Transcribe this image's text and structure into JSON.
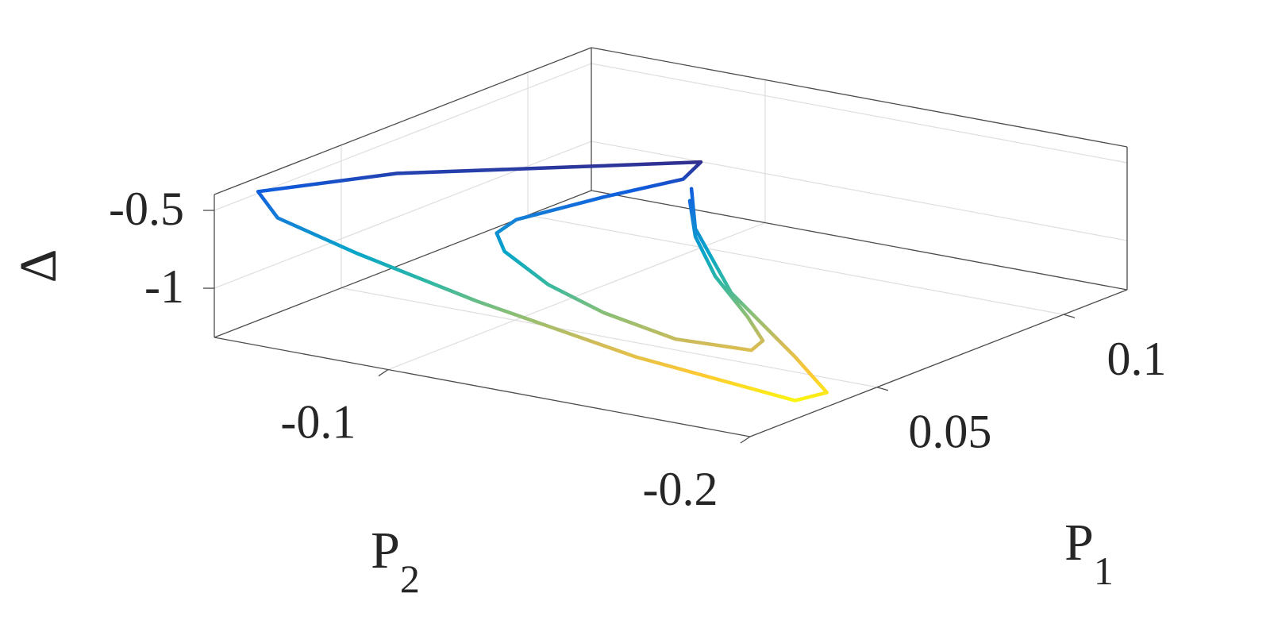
{
  "chart_data": {
    "type": "line3d",
    "xlabel": {
      "text": "P",
      "subscript": "1"
    },
    "ylabel": {
      "text": "P",
      "subscript": "2"
    },
    "zlabel": "Δ",
    "x": [
      0.0652,
      0.0635,
      0.0575,
      0.0488,
      0.0425,
      0.0407,
      0.0408,
      0.0418,
      0.0428,
      0.0437,
      0.0443,
      0.045,
      0.0559,
      0.0674,
      0.0769,
      0.0625,
      0.0454,
      0.0249,
      0.0252,
      0.03,
      0.0326,
      0.0349,
      0.0355,
      0.0384,
      0.0378,
      0.0476,
      0.0599,
      0.0673
    ],
    "y": [
      -0.1326,
      -0.1359,
      -0.1476,
      -0.1654,
      -0.1762,
      -0.1749,
      -0.1539,
      -0.133,
      -0.1167,
      -0.1036,
      -0.1008,
      -0.1055,
      -0.1185,
      -0.1285,
      -0.1236,
      -0.1061,
      -0.0722,
      -0.0549,
      -0.06,
      -0.0771,
      -0.1074,
      -0.1489,
      -0.1923,
      -0.1981,
      -0.1899,
      -0.1622,
      -0.1396,
      -0.1309
    ],
    "z": [
      -0.55,
      -0.75,
      -0.9,
      -1.0,
      -1.05,
      -1.1,
      -1.12,
      -1.05,
      -0.95,
      -0.8,
      -0.7,
      -0.6,
      -0.5,
      -0.45,
      -0.45,
      -0.42,
      -0.45,
      -0.45,
      -0.6,
      -0.8,
      -1.0,
      -1.2,
      -1.3,
      -1.25,
      -1.05,
      -0.85,
      -0.65,
      -0.5
    ],
    "xlim": [
      0.016,
      0.117
    ],
    "ylim": [
      -0.2,
      -0.052
    ],
    "zlim": [
      -1.316,
      -0.398
    ],
    "xticks": [
      0.05,
      0.1
    ],
    "yticks": [
      -0.2,
      -0.1
    ],
    "zticks": [
      -1,
      -0.5
    ],
    "colormap": [
      "#352a87",
      "#0f5cdd",
      "#1481d6",
      "#06a4ca",
      "#2eb7a4",
      "#87bf77",
      "#d1bb59",
      "#fec832",
      "#f9fb0e"
    ],
    "grid": true
  }
}
